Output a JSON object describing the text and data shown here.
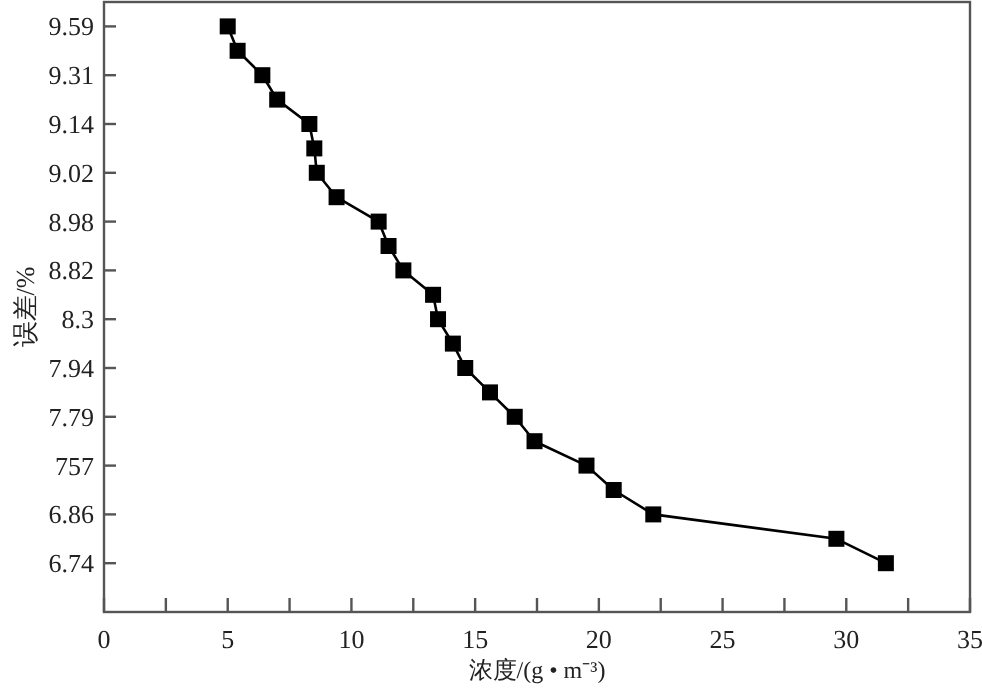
{
  "chart_data": {
    "type": "line",
    "orientation": "horizontal",
    "xlabel": "浓度/(g • m⁻³)",
    "ylabel": "误差/%",
    "marker": "square",
    "line_style": "solid",
    "grid": false,
    "xlim": [
      0,
      35
    ],
    "xticks": [
      0,
      {
        "value": 2.5,
        "label": null
      },
      5,
      {
        "value": 7.5,
        "label": null
      },
      10,
      {
        "value": 12.5,
        "label": null
      },
      15,
      {
        "value": 17.5,
        "label": null
      },
      20,
      {
        "value": 22.5,
        "label": null
      },
      25,
      {
        "value": 27.5,
        "label": null
      },
      30,
      {
        "value": 32.5,
        "label": null
      },
      35
    ],
    "categories": [
      "9.59",
      null,
      "9.31",
      null,
      "9.14",
      null,
      "9.02",
      null,
      "8.98",
      null,
      "8.82",
      null,
      "8.3",
      null,
      "7.94",
      null,
      "7.79",
      null,
      "757",
      null,
      "6.86",
      null,
      "6.74"
    ],
    "series": [
      {
        "color": "#000000",
        "values": [
          5.0,
          5.4,
          6.4,
          7.0,
          8.3,
          8.5,
          8.6,
          9.4,
          11.1,
          11.5,
          12.1,
          13.3,
          13.5,
          14.1,
          14.6,
          15.6,
          16.6,
          17.4,
          19.5,
          20.6,
          22.2,
          29.6,
          31.6
        ]
      }
    ]
  }
}
